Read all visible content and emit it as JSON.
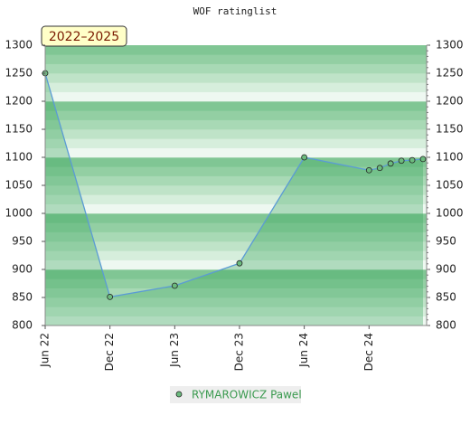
{
  "chart_data": {
    "type": "line",
    "title": "WOF ratinglist",
    "period_label": "2022–2025",
    "x": [
      "2022-06",
      "2022-12",
      "2023-06",
      "2023-12",
      "2024-06",
      "2024-12",
      "2025-01",
      "2025-02",
      "2025-03",
      "2025-04",
      "2025-05"
    ],
    "series": [
      {
        "name": "RYMAROWICZ Pawel",
        "color": "#5b9bd5",
        "marker_color": "#6cbb7e",
        "values": [
          1250,
          851,
          871,
          911,
          1100,
          1077,
          1081,
          1089,
          1094,
          1095,
          1097
        ]
      }
    ],
    "xlim": [
      "2022-06",
      "2025-05"
    ],
    "xticks": [
      {
        "value": "2022-06",
        "label": "Jun 22"
      },
      {
        "value": "2022-12",
        "label": "Dec 22"
      },
      {
        "value": "2023-06",
        "label": "Jun 23"
      },
      {
        "value": "2023-12",
        "label": "Dec 23"
      },
      {
        "value": "2024-06",
        "label": "Jun 24"
      },
      {
        "value": "2024-12",
        "label": "Dec 24"
      }
    ],
    "ylim": [
      800,
      1300
    ],
    "yticks": [
      800,
      850,
      900,
      950,
      1000,
      1050,
      1100,
      1150,
      1200,
      1250,
      1300
    ],
    "y2lim": [
      800,
      1300
    ],
    "y2ticks": [
      800,
      850,
      900,
      950,
      1000,
      1050,
      1100,
      1150,
      1200,
      1250,
      1300
    ]
  }
}
